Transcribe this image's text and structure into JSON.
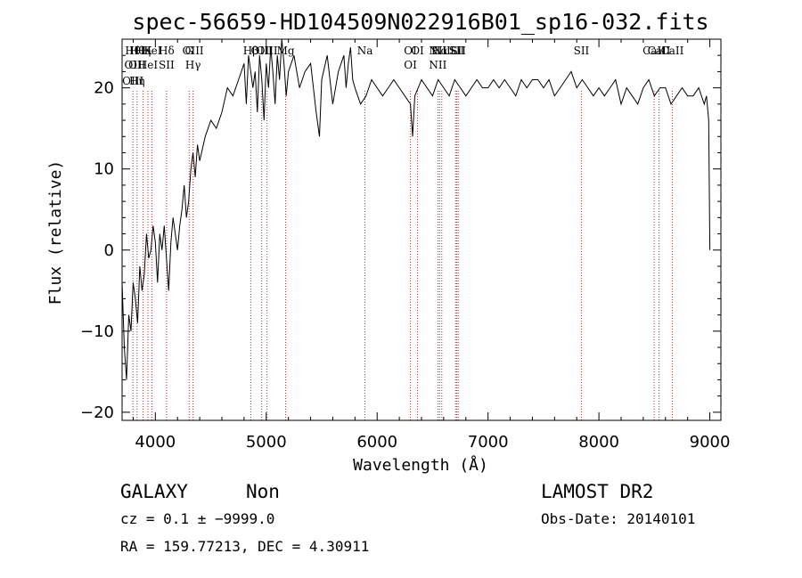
{
  "chart_data": {
    "type": "line",
    "title": "spec-56659-HD104509N022916B01_sp16-032.fits",
    "xlabel": "Wavelength (Å)",
    "ylabel": "Flux (relative)",
    "xlim": [
      3700,
      9100
    ],
    "ylim": [
      -21,
      26
    ],
    "xticks": [
      4000,
      5000,
      6000,
      7000,
      8000,
      9000
    ],
    "yticks": [
      -20,
      -10,
      0,
      10,
      20
    ],
    "ytick_labels": [
      "−20",
      "−10",
      "0",
      "10",
      "20"
    ],
    "grid": false,
    "series": [
      {
        "x": [
          3700,
          3720,
          3740,
          3760,
          3780,
          3800,
          3820,
          3840,
          3860,
          3880,
          3900,
          3920,
          3940,
          3960,
          3980,
          4000,
          4020,
          4040,
          4060,
          4080,
          4100,
          4120,
          4140,
          4160,
          4180,
          4200,
          4220,
          4240,
          4260,
          4280,
          4300,
          4320,
          4340,
          4360,
          4380,
          4400,
          4450,
          4500,
          4550,
          4600,
          4650,
          4700,
          4750,
          4800,
          4820,
          4840,
          4860,
          4880,
          4900,
          4920,
          4940,
          4960,
          4980,
          5000,
          5020,
          5040,
          5060,
          5080,
          5100,
          5120,
          5140,
          5160,
          5180,
          5200,
          5250,
          5300,
          5350,
          5400,
          5450,
          5480,
          5500,
          5550,
          5600,
          5650,
          5700,
          5720,
          5740,
          5760,
          5780,
          5800,
          5850,
          5900,
          5950,
          6000,
          6050,
          6100,
          6150,
          6200,
          6250,
          6300,
          6320,
          6340,
          6400,
          6450,
          6500,
          6550,
          6600,
          6650,
          6700,
          6750,
          6800,
          6850,
          6900,
          6950,
          7000,
          7050,
          7100,
          7150,
          7200,
          7250,
          7300,
          7350,
          7400,
          7450,
          7500,
          7550,
          7600,
          7650,
          7700,
          7750,
          7800,
          7850,
          7900,
          7950,
          8000,
          8050,
          8100,
          8150,
          8200,
          8250,
          8300,
          8350,
          8400,
          8450,
          8500,
          8550,
          8600,
          8650,
          8700,
          8750,
          8800,
          8850,
          8900,
          8950,
          8970,
          8990,
          9000
        ],
        "y": [
          -4,
          -12,
          -16,
          -8,
          -10,
          -4,
          -6,
          -9,
          -2,
          -5,
          -3,
          2,
          -1,
          0,
          3,
          1,
          -4,
          2,
          0,
          3,
          -1,
          -5,
          1,
          4,
          2,
          0,
          3,
          5,
          8,
          4,
          6,
          10,
          12,
          9,
          13,
          11,
          14,
          16,
          15,
          17,
          20,
          19,
          21,
          23,
          18,
          24,
          22,
          20,
          22,
          17,
          24,
          21,
          16,
          23,
          20,
          25,
          22,
          18,
          24,
          21,
          26,
          23,
          19,
          22,
          24,
          20,
          22,
          23,
          17,
          14,
          21,
          24,
          18,
          22,
          24,
          20,
          23,
          25,
          21,
          20,
          18,
          19,
          21,
          20,
          19,
          20,
          21,
          20,
          19,
          18,
          14,
          19,
          21,
          20,
          19,
          21,
          20,
          19,
          21,
          20,
          19,
          20,
          21,
          20,
          20,
          21,
          20,
          21,
          20,
          19,
          21,
          20,
          21,
          21,
          20,
          21,
          19,
          20,
          21,
          22,
          20,
          21,
          20,
          19,
          20,
          19,
          20,
          21,
          18,
          20,
          19,
          18,
          20,
          21,
          19,
          20,
          20,
          18,
          19,
          20,
          19,
          19,
          20,
          18,
          19,
          16,
          0
        ]
      }
    ],
    "lines": [
      {
        "x": 3798,
        "labels": [
          "Hθ",
          "OII",
          "OIII"
        ]
      },
      {
        "x": 3835,
        "labels": [
          "Hθ",
          "OII",
          "Hη"
        ]
      },
      {
        "x": 3889,
        "labels": [
          "Hη"
        ]
      },
      {
        "x": 3933,
        "labels": [
          "K",
          "HeI"
        ]
      },
      {
        "x": 3968,
        "labels": [
          "HeI"
        ]
      },
      {
        "x": 4101,
        "labels": [
          "Hδ",
          "SII"
        ]
      },
      {
        "x": 4305,
        "labels": [
          "G"
        ]
      },
      {
        "x": 4340,
        "labels": [
          "OIII",
          "Hγ"
        ]
      },
      {
        "x": 4861,
        "labels": [
          "Hβ"
        ]
      },
      {
        "x": 4959,
        "labels": [
          "OIII"
        ]
      },
      {
        "x": 5007,
        "labels": [
          "OIII"
        ]
      },
      {
        "x": 5175,
        "labels": [
          "Mg"
        ]
      },
      {
        "x": 5890,
        "labels": [
          "Na"
        ]
      },
      {
        "x": 6300,
        "labels": [
          "OI",
          "OI"
        ]
      },
      {
        "x": 6364,
        "labels": [
          "OI"
        ]
      },
      {
        "x": 6548,
        "labels": [
          "NII",
          "NII"
        ]
      },
      {
        "x": 6563,
        "labels": [
          "Hα"
        ]
      },
      {
        "x": 6583,
        "labels": [
          "NII"
        ]
      },
      {
        "x": 6707,
        "labels": [
          "Li"
        ]
      },
      {
        "x": 6717,
        "labels": [
          "SII"
        ]
      },
      {
        "x": 6731,
        "labels": [
          "SII"
        ]
      },
      {
        "x": 7842,
        "labels": [
          "SII"
        ]
      },
      {
        "x": 8498,
        "labels": [
          "CaII"
        ]
      },
      {
        "x": 8542,
        "labels": [
          "CaII"
        ]
      },
      {
        "x": 8662,
        "labels": [
          "CaII"
        ]
      }
    ]
  },
  "info": {
    "class": "GALAXY",
    "subclass": "Non",
    "survey": "LAMOST DR2",
    "cz": "cz = 0.1 ± −9999.0",
    "obs_date": "Obs-Date: 20140101",
    "radec": "RA = 159.77213, DEC =   4.30911"
  },
  "colors": {
    "axes": "#000000",
    "spectrum": "#000000",
    "line_markers": "#b03030"
  }
}
